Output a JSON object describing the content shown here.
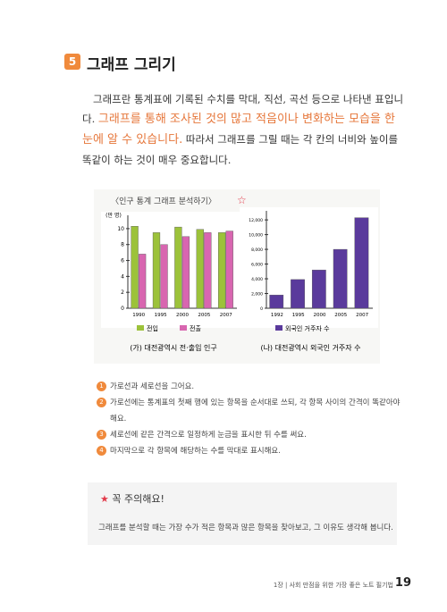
{
  "heading": {
    "number": "5",
    "title": "그래프 그리기"
  },
  "intro": {
    "lead": "그래프란 통계표에 기록된 수치를 막대, 직선, 곡선 등으로 나타낸 표입니다.",
    "highlight": "그래프를 통해 조사된 것의 많고 적음이나 변화하는 모습을 한눈에 알 수 있습니다.",
    "rest": "따라서 그래프를 그릴 때는 각 칸의 너비와 높이를 똑같이 하는 것이 매우 중요합니다."
  },
  "figure_title": "〈인구 통계 그래프 분석하기〉",
  "charts": [
    {
      "type": "bar",
      "ylabel": "(만 명)",
      "caption": "(가) 대전광역시 전·출입 인구",
      "categories": [
        "1990",
        "1995",
        "2000",
        "2005",
        "2007"
      ],
      "series": [
        {
          "name": "전입",
          "color": "#9cc23a",
          "values": [
            10.3,
            9.5,
            10.2,
            9.9,
            9.5
          ]
        },
        {
          "name": "전출",
          "color": "#d866b0",
          "values": [
            6.8,
            8.0,
            9.0,
            9.5,
            9.7
          ]
        }
      ],
      "ylim": [
        0,
        11
      ],
      "yticks": [
        0,
        2,
        4,
        6,
        8,
        10
      ]
    },
    {
      "type": "bar",
      "caption": "(나) 대전광역시 외국인 거주자 수",
      "categories": [
        "1992",
        "1995",
        "2000",
        "2005",
        "2007"
      ],
      "series": [
        {
          "name": "외국인 거주자 수",
          "color": "#5a3a9c",
          "values": [
            1800,
            3900,
            5200,
            8000,
            12300
          ]
        }
      ],
      "ylim": [
        0,
        12500
      ],
      "yticks": [
        0,
        {
          "value": 2000,
          "label": "2,000"
        },
        {
          "value": 4000,
          "label": "4,000"
        },
        {
          "value": 6000,
          "label": "6,000"
        },
        {
          "value": 8000,
          "label": "8,000"
        },
        {
          "value": 10000,
          "label": "10,000"
        },
        {
          "value": 12000,
          "label": "12,000"
        }
      ]
    }
  ],
  "steps": [
    {
      "number": "1",
      "text": "가로선과 세로선을 그어요."
    },
    {
      "number": "2",
      "text": "가로선에는 통계표의 첫째 행에 있는 항목을 순서대로 쓰되, 각 항목 사이의 간격이 똑같아야 해요."
    },
    {
      "number": "3",
      "text": "세로선에 같은 간격으로 일정하게 눈금을 표시한 뒤 수를 써요."
    },
    {
      "number": "4",
      "text": "마지막으로 각 항목에 해당하는 수를 막대로 표시해요."
    }
  ],
  "notice": {
    "title": "꼭 주의해요!",
    "text": "그래프를 분석할 때는 가장 수가 적은 항목과 많은 항목을 찾아보고, 그 이유도 생각해 봅니다."
  },
  "footer": {
    "chapter": "1장 | 사회 만점을 위한 가장 좋은 노트 필기법",
    "page": "19"
  }
}
